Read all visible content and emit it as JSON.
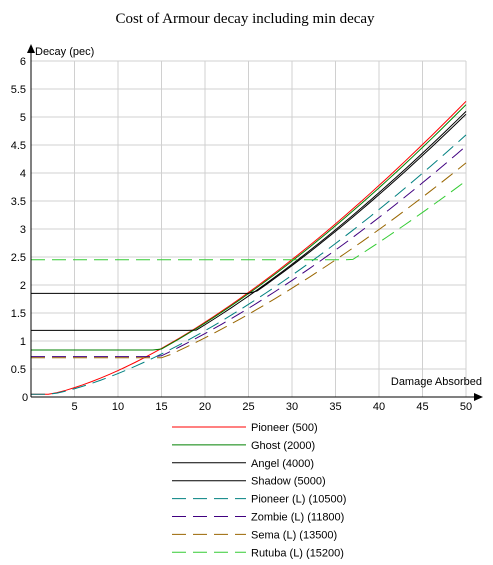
{
  "chart_data": {
    "type": "line",
    "title": "Cost of Armour decay including min decay",
    "xlabel": "Damage Absorbed",
    "ylabel": "Decay (pec)",
    "xlim": [
      0,
      50
    ],
    "ylim": [
      0,
      6
    ],
    "xticks": [
      0,
      5,
      10,
      15,
      20,
      25,
      30,
      35,
      40,
      45,
      50
    ],
    "yticks": [
      0,
      0.5,
      1,
      1.5,
      2,
      2.5,
      3,
      3.5,
      4,
      4.5,
      5,
      5.5,
      6
    ],
    "grid": true,
    "legend": "bottom",
    "curve_points_x": [
      0,
      1,
      2,
      3,
      4,
      5,
      6,
      7,
      8,
      9,
      10,
      11,
      12,
      13,
      14,
      15,
      16,
      17,
      18,
      19,
      20,
      21,
      22,
      23,
      24,
      25,
      26,
      27,
      28,
      29,
      30,
      31,
      32,
      33,
      34,
      35,
      36,
      37,
      38,
      39,
      40,
      41,
      42,
      43,
      44,
      45,
      46,
      47,
      48,
      49,
      50
    ],
    "series": [
      {
        "name": "Pioneer (500)",
        "color": "#ff0000",
        "dashed": false,
        "min_decay": 0.05,
        "y_at_50": 5.28
      },
      {
        "name": "Ghost (2000)",
        "color": "#008000",
        "dashed": false,
        "min_decay": 0.84,
        "y_at_50": 5.22
      },
      {
        "name": "Angel (4000)",
        "color": "#000000",
        "dashed": false,
        "min_decay": 1.19,
        "y_at_50": 5.1
      },
      {
        "name": "Shadow (5000)",
        "color": "#000000",
        "dashed": false,
        "min_decay": 1.85,
        "y_at_50": 5.05
      },
      {
        "name": "Pioneer (L) (10500)",
        "color": "#008080",
        "dashed": true,
        "min_decay": 0.05,
        "y_at_50": 4.68
      },
      {
        "name": "Zombie (L) (11800)",
        "color": "#400080",
        "dashed": true,
        "min_decay": 0.72,
        "y_at_50": 4.48
      },
      {
        "name": "Sema (L) (13500)",
        "color": "#996600",
        "dashed": true,
        "min_decay": 0.7,
        "y_at_50": 4.18
      },
      {
        "name": "Rutuba (L) (15200)",
        "color": "#33cc33",
        "dashed": true,
        "min_decay": 2.45,
        "y_at_50": 3.86
      }
    ]
  }
}
